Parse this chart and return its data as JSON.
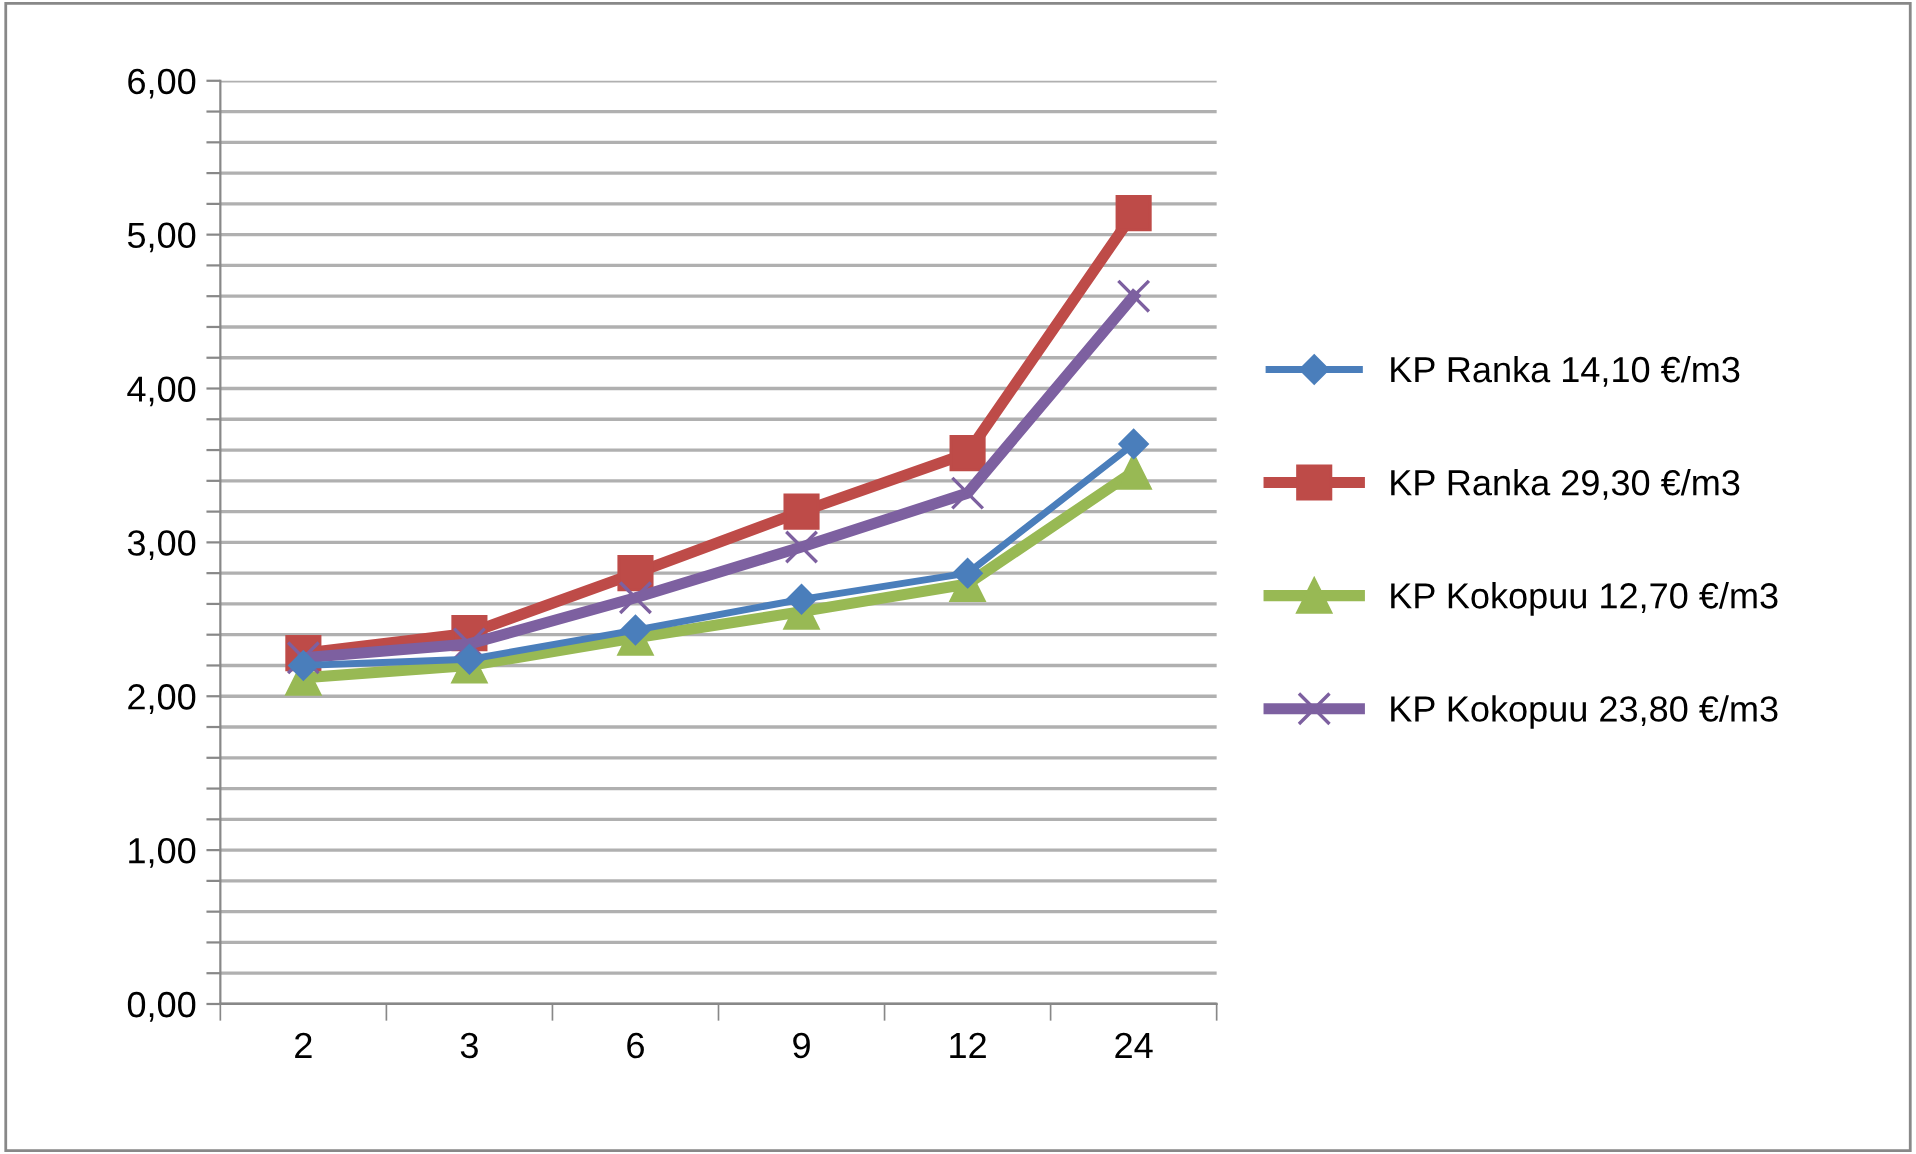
{
  "chart_data": {
    "type": "line",
    "categories": [
      "2",
      "3",
      "6",
      "9",
      "12",
      "24"
    ],
    "series": [
      {
        "name": "KP Ranka 14,10 €/m3",
        "color": "#4a7ebb",
        "marker": "diamond",
        "values": [
          2.2,
          2.24,
          2.43,
          2.63,
          2.8,
          3.64
        ]
      },
      {
        "name": "KP Ranka 29,30 €/m3",
        "color": "#be4b48",
        "marker": "square",
        "values": [
          2.28,
          2.41,
          2.8,
          3.2,
          3.58,
          5.14
        ]
      },
      {
        "name": "KP Kokopuu 12,70 €/m3",
        "color": "#98b954",
        "marker": "triangle",
        "values": [
          2.12,
          2.2,
          2.38,
          2.55,
          2.73,
          3.46
        ]
      },
      {
        "name": "KP Kokopuu 23,80 €/m3",
        "color": "#7d60a0",
        "marker": "cross",
        "values": [
          2.25,
          2.34,
          2.64,
          2.97,
          3.32,
          4.6
        ]
      }
    ],
    "ylim": [
      0,
      6
    ],
    "yticks": [
      "0,00",
      {
        "value": 0.2,
        "label": null
      },
      {
        "value": 0.4,
        "label": null
      },
      {
        "value": 0.6,
        "label": null
      },
      {
        "value": 0.8,
        "label": null
      },
      {
        "value": 1,
        "label": "1,00"
      },
      {
        "value": 1.2,
        "label": null
      },
      {
        "value": 1.4,
        "label": null
      },
      {
        "value": 1.6,
        "label": null
      },
      {
        "value": 1.8,
        "label": null
      },
      {
        "value": 2,
        "label": "2,00"
      },
      {
        "value": 2.2,
        "label": null
      },
      {
        "value": 2.4,
        "label": null
      },
      {
        "value": 2.6,
        "label": null
      },
      {
        "value": 2.8,
        "label": null
      },
      {
        "value": 3,
        "label": "3,00"
      },
      {
        "value": 3.2,
        "label": null
      },
      {
        "value": 3.4,
        "label": null
      },
      {
        "value": 3.6,
        "label": null
      },
      {
        "value": 3.8,
        "label": null
      },
      {
        "value": 4,
        "label": "4,00"
      },
      {
        "value": 4.2,
        "label": null
      },
      {
        "value": 4.4,
        "label": null
      },
      {
        "value": 4.6,
        "label": null
      },
      {
        "value": 4.8,
        "label": null
      },
      {
        "value": 5,
        "label": "5,00"
      },
      {
        "value": 5.2,
        "label": null
      },
      {
        "value": 5.4,
        "label": null
      },
      {
        "value": 5.6,
        "label": null
      },
      {
        "value": 5.8,
        "label": null
      },
      {
        "value": 6,
        "label": "6,00"
      }
    ],
    "grid": "y",
    "legend": "right",
    "line_style": "solid"
  }
}
